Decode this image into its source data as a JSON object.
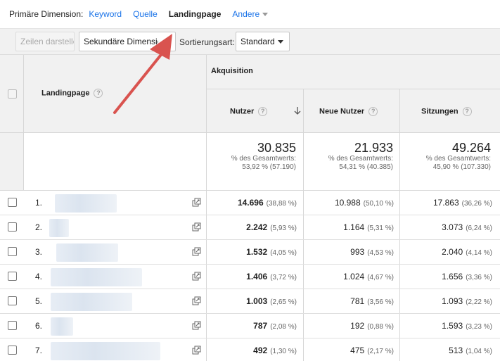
{
  "dimension_bar": {
    "label": "Primäre Dimension:",
    "options": [
      "Keyword",
      "Quelle"
    ],
    "active": "Landingpage",
    "more": "Andere"
  },
  "toolbar": {
    "plot_rows": "Zeilen darstellen",
    "secondary_dimension": "Sekundäre Dimension",
    "sort_label": "Sortierungsart:",
    "sort_value": "Standard"
  },
  "table": {
    "group_header": "Akquisition",
    "dimension_header": "Landingpage",
    "columns": [
      "Nutzer",
      "Neue Nutzer",
      "Sitzungen"
    ],
    "totals": [
      {
        "value": "30.835",
        "pct_line": "% des Gesamtwerts:",
        "detail": "53,92 % (57.190)"
      },
      {
        "value": "21.933",
        "pct_line": "% des Gesamtwerts:",
        "detail": "54,31 % (40.385)"
      },
      {
        "value": "49.264",
        "pct_line": "% des Gesamtwerts:",
        "detail": "45,90 % (107.330)"
      }
    ],
    "rows": [
      {
        "num": "1.",
        "nutzer": "14.696",
        "nutzer_pct": "(38,88 %)",
        "neue": "10.988",
        "neue_pct": "(50,10 %)",
        "sitz": "17.863",
        "sitz_pct": "(36,26 %)"
      },
      {
        "num": "2.",
        "nutzer": "2.242",
        "nutzer_pct": "(5,93 %)",
        "neue": "1.164",
        "neue_pct": "(5,31 %)",
        "sitz": "3.073",
        "sitz_pct": "(6,24 %)"
      },
      {
        "num": "3.",
        "nutzer": "1.532",
        "nutzer_pct": "(4,05 %)",
        "neue": "993",
        "neue_pct": "(4,53 %)",
        "sitz": "2.040",
        "sitz_pct": "(4,14 %)"
      },
      {
        "num": "4.",
        "nutzer": "1.406",
        "nutzer_pct": "(3,72 %)",
        "neue": "1.024",
        "neue_pct": "(4,67 %)",
        "sitz": "1.656",
        "sitz_pct": "(3,36 %)"
      },
      {
        "num": "5.",
        "nutzer": "1.003",
        "nutzer_pct": "(2,65 %)",
        "neue": "781",
        "neue_pct": "(3,56 %)",
        "sitz": "1.093",
        "sitz_pct": "(2,22 %)"
      },
      {
        "num": "6.",
        "nutzer": "787",
        "nutzer_pct": "(2,08 %)",
        "neue": "192",
        "neue_pct": "(0,88 %)",
        "sitz": "1.593",
        "sitz_pct": "(3,23 %)"
      },
      {
        "num": "7.",
        "nutzer": "492",
        "nutzer_pct": "(1,30 %)",
        "neue": "475",
        "neue_pct": "(2,17 %)",
        "sitz": "513",
        "sitz_pct": "(1,04 %)"
      }
    ]
  },
  "colors": {
    "link": "#1a73e8",
    "annotation_arrow": "#d9534f",
    "header_bg": "#f1f1f1"
  }
}
